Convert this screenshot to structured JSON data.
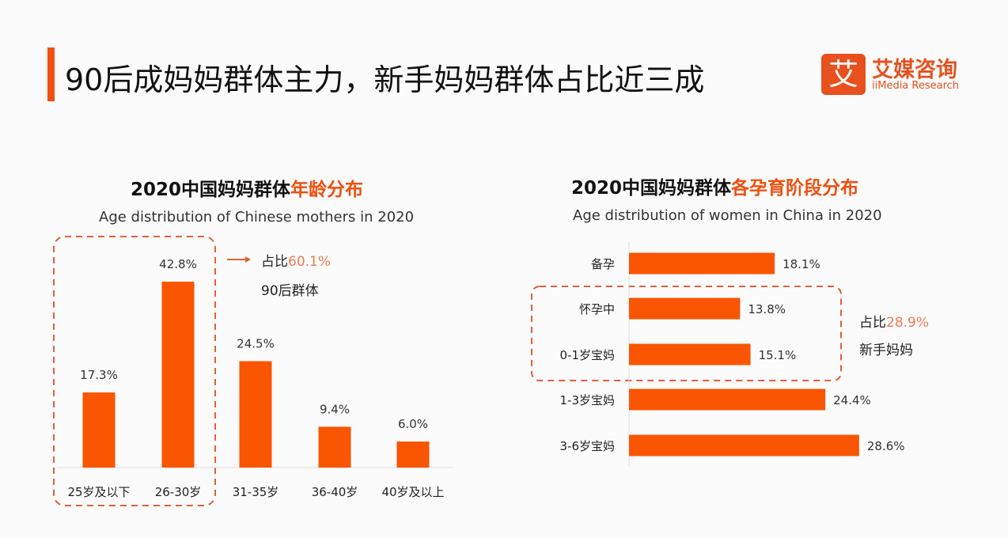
{
  "header": {
    "title": "90后成妈妈群体主力，新手妈妈群体占比近三成",
    "logo_cn": "艾媒咨询",
    "logo_en": "iiMedia Research",
    "logo_mark": "艾"
  },
  "colors": {
    "bar": "#fa5500",
    "accent": "#f0500f",
    "highlight_text": "#f07a50",
    "dash": "#e0603a"
  },
  "chart_data": [
    {
      "type": "bar",
      "title_prefix": "2020中国妈妈群体",
      "title_highlight": "年龄分布",
      "subtitle": "Age distribution of Chinese mothers in 2020",
      "categories": [
        "25岁及以下",
        "26-30岁",
        "31-35岁",
        "36-40岁",
        "40岁及以上"
      ],
      "values": [
        17.3,
        42.8,
        24.5,
        9.4,
        6.0
      ],
      "labels": [
        "17.3%",
        "42.8%",
        "24.5%",
        "9.4%",
        "6.0%"
      ],
      "annotation": {
        "prefix": "占比",
        "value": "60.1%",
        "label": "90后群体"
      }
    },
    {
      "type": "bar",
      "orientation": "horizontal",
      "title_prefix": "2020中国妈妈群体",
      "title_highlight": "各孕育阶段分布",
      "subtitle": "Age distribution of  women in China in 2020",
      "categories": [
        "备孕",
        "怀孕中",
        "0-1岁宝妈",
        "1-3岁宝妈",
        "3-6岁宝妈"
      ],
      "values": [
        18.1,
        13.8,
        15.1,
        24.4,
        28.6
      ],
      "labels": [
        "18.1%",
        "13.8%",
        "15.1%",
        "24.4%",
        "28.6%"
      ],
      "annotation": {
        "prefix": "占比",
        "value": "28.9%",
        "label": "新手妈妈"
      }
    }
  ]
}
